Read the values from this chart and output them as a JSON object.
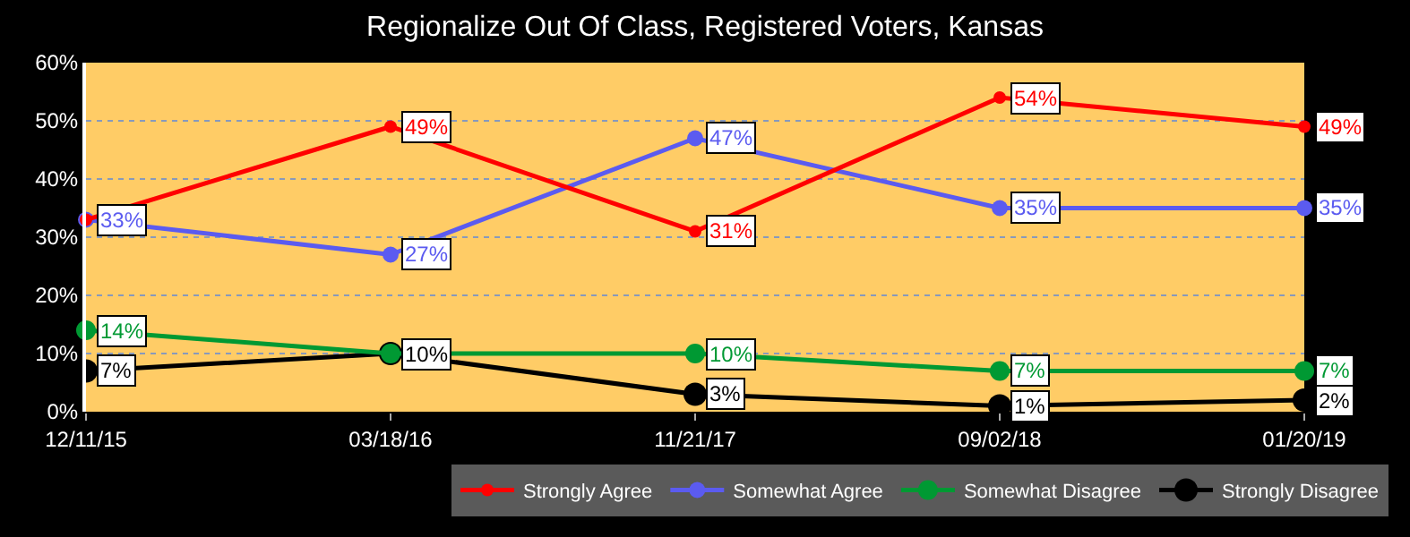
{
  "chart_data": {
    "type": "line",
    "title": "Regionalize Out Of Class, Registered Voters, Kansas",
    "categories": [
      "12/11/15",
      "03/18/16",
      "11/21/17",
      "09/02/18",
      "01/20/19"
    ],
    "series": [
      {
        "name": "Strongly Agree",
        "color": "#ff0000",
        "values": [
          33,
          49,
          31,
          54,
          49
        ],
        "value_labels": [
          null,
          "49%",
          "31%",
          "54%",
          "49%"
        ]
      },
      {
        "name": "Somewhat Agree",
        "color": "#5b5bf0",
        "values": [
          33,
          27,
          47,
          35,
          35
        ],
        "value_labels": [
          "33%",
          "27%",
          "47%",
          "35%",
          "35%"
        ]
      },
      {
        "name": "Somewhat Disagree",
        "color": "#009933",
        "values": [
          14,
          10,
          10,
          7,
          7
        ],
        "value_labels": [
          "14%",
          null,
          "10%",
          "7%",
          "7%"
        ]
      },
      {
        "name": "Strongly Disagree",
        "color": "#000000",
        "values": [
          7,
          10,
          3,
          1,
          2
        ],
        "value_labels": [
          "7%",
          "10%",
          "3%",
          "1%",
          "2%"
        ]
      }
    ],
    "ylim": [
      0,
      60
    ],
    "yticks": [
      {
        "value": 0,
        "label": "0%"
      },
      {
        "value": 10,
        "label": "10%"
      },
      {
        "value": 20,
        "label": "20%"
      },
      {
        "value": 30,
        "label": "30%"
      },
      {
        "value": 40,
        "label": "40%"
      },
      {
        "value": 50,
        "label": "50%"
      },
      {
        "value": 60,
        "label": "60%"
      }
    ],
    "grid": "y",
    "legend": "bottom",
    "marker": "circle",
    "line_style": "solid"
  }
}
